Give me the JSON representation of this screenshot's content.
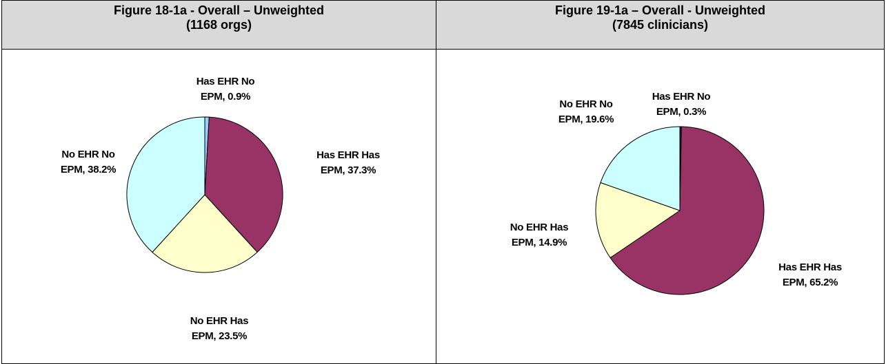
{
  "chart_data": [
    {
      "type": "pie",
      "title": "Figure 18-1a - Overall – Unweighted",
      "subtitle": "(1168 orgs)",
      "values": [
        0.9,
        37.3,
        23.5,
        38.2
      ],
      "value_labels": [
        "Has EHR No EPM, 0.9%",
        "Has EHR Has EPM, 37.3%",
        "No EHR Has EPM, 23.5%",
        "No EHR No EPM, 38.2%"
      ],
      "colors": [
        "#99ccff",
        "#993366",
        "#ffffcc",
        "#ccffff"
      ]
    },
    {
      "type": "pie",
      "title": "Figure 19-1a – Overall - Unweighted",
      "subtitle": "(7845 clinicians)",
      "values": [
        0.3,
        65.2,
        14.9,
        19.6
      ],
      "value_labels": [
        "Has EHR No EPM, 0.3%",
        "Has EHR Has EPM, 65.2%",
        "No EHR Has EPM, 14.9%",
        "No EHR No EPM, 19.6%"
      ],
      "colors": [
        "#222222",
        "#993366",
        "#ffffcc",
        "#ccffff"
      ]
    }
  ]
}
